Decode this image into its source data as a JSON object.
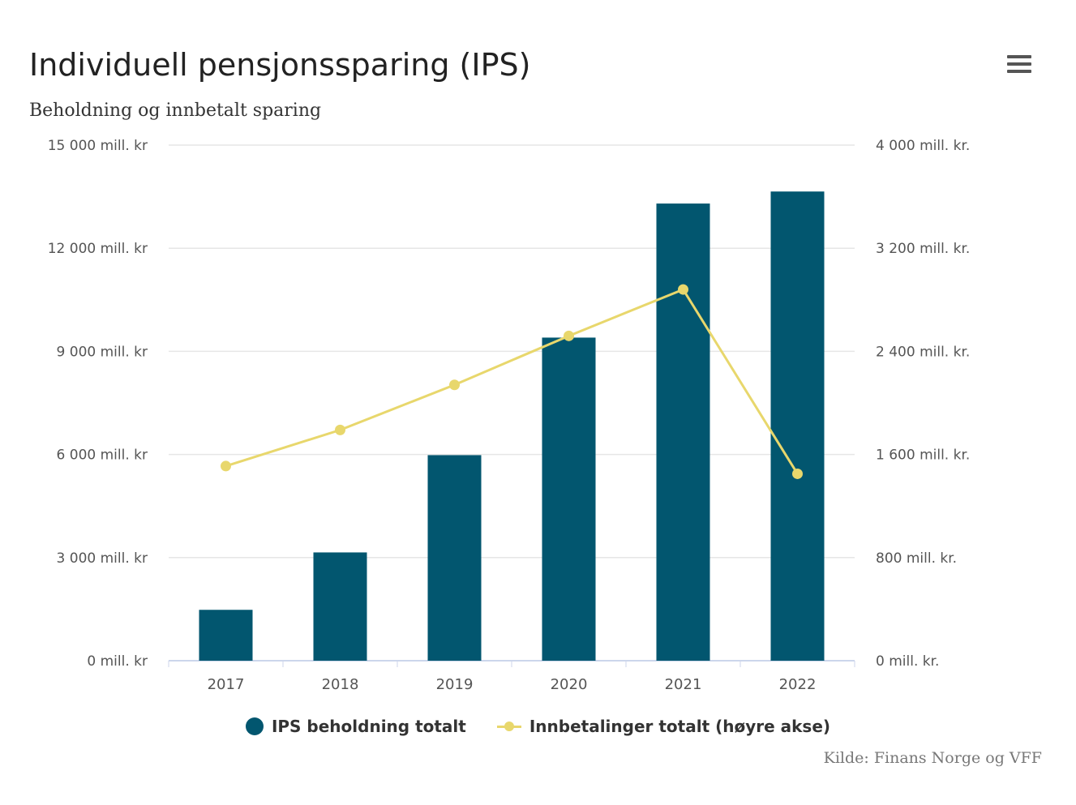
{
  "title": "Individuell pensjonssparing (IPS)",
  "subtitle": "Beholdning og innbetalt sparing",
  "credits": "Kilde: Finans Norge og VFF",
  "menu_icon": "hamburger-menu-icon",
  "colors": {
    "bar": "#02566f",
    "line": "#e8d76c",
    "grid": "#e6e6e6",
    "axis": "#ccd6eb"
  },
  "chart_data": {
    "type": "bar+line",
    "categories": [
      "2017",
      "2018",
      "2019",
      "2020",
      "2021",
      "2022"
    ],
    "series": [
      {
        "name": "IPS beholdning totalt",
        "type": "bar",
        "axis": "left",
        "values": [
          1480,
          3150,
          5980,
          9400,
          13300,
          13650
        ]
      },
      {
        "name": "Innbetalinger totalt (høyre akse)",
        "type": "line",
        "axis": "right",
        "values": [
          1510,
          1790,
          2140,
          2520,
          2880,
          1450
        ]
      }
    ],
    "y_left": {
      "min": 0,
      "max": 15000,
      "ticks": [
        0,
        3000,
        6000,
        9000,
        12000,
        15000
      ],
      "tick_labels": [
        "0 mill. kr",
        "3 000 mill. kr",
        "6 000 mill. kr",
        "9 000 mill. kr",
        "12 000 mill. kr",
        "15 000 mill. kr"
      ]
    },
    "y_right": {
      "min": 0,
      "max": 4000,
      "ticks": [
        0,
        800,
        1600,
        2400,
        3200,
        4000
      ],
      "tick_labels": [
        "0 mill. kr.",
        "800 mill. kr.",
        "1 600 mill. kr.",
        "2 400 mill. kr.",
        "3 200 mill. kr.",
        "4 000 mill. kr."
      ]
    },
    "legend": [
      "IPS beholdning totalt",
      "Innbetalinger totalt (høyre akse)"
    ],
    "grid": true
  }
}
